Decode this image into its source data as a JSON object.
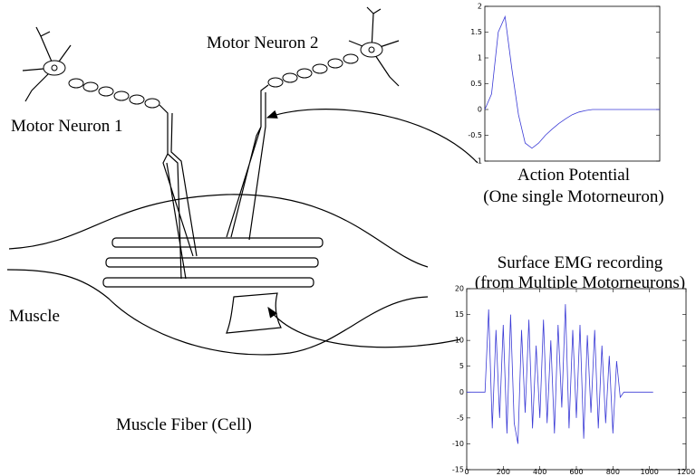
{
  "labels": {
    "neuron1": "Motor Neuron 1",
    "neuron2": "Motor Neuron 2",
    "muscle": "Muscle",
    "fiber": "Muscle Fiber (Cell)",
    "ap_title": "Action Potential",
    "ap_subtitle": "(One single Motorneuron)",
    "emg_title": "Surface EMG recording",
    "emg_subtitle": "(from Multiple Motorneurons)"
  },
  "chart_data": [
    {
      "type": "line",
      "color": "#3b3bd6",
      "x": [
        0,
        5,
        10,
        15,
        20,
        25,
        30,
        35,
        40,
        45,
        50,
        55,
        60,
        65,
        70,
        75,
        80,
        85,
        90,
        95,
        100,
        105,
        110,
        115,
        120,
        125,
        130
      ],
      "values": [
        0,
        0.3,
        1.5,
        1.8,
        0.8,
        -0.1,
        -0.65,
        -0.75,
        -0.65,
        -0.5,
        -0.38,
        -0.27,
        -0.18,
        -0.1,
        -0.05,
        -0.02,
        0,
        0,
        0,
        0,
        0,
        0,
        0,
        0,
        0,
        0,
        0
      ],
      "xlim": [
        0,
        130
      ],
      "ylim": [
        -1,
        2
      ],
      "yticks": [
        -1,
        -0.5,
        0,
        0.5,
        1,
        1.5,
        2
      ]
    },
    {
      "type": "line",
      "color": "#3b3bd6",
      "x": [
        0,
        20,
        40,
        60,
        80,
        100,
        120,
        140,
        160,
        180,
        200,
        220,
        240,
        260,
        280,
        300,
        320,
        340,
        360,
        380,
        400,
        420,
        440,
        460,
        480,
        500,
        520,
        540,
        560,
        580,
        600,
        620,
        640,
        660,
        680,
        700,
        720,
        740,
        760,
        780,
        800,
        820,
        840,
        860,
        880,
        900,
        920,
        940,
        960,
        980,
        1000,
        1020
      ],
      "values": [
        0,
        0,
        0,
        0,
        0,
        0,
        16,
        -7,
        12,
        -5,
        13,
        -8,
        15,
        -6,
        -10,
        12,
        -4,
        14,
        -7,
        9,
        -5,
        14,
        -6,
        10,
        -8,
        13,
        -3,
        17,
        -7,
        12,
        -5,
        13,
        -9,
        11,
        -4,
        12,
        -7,
        9,
        -6,
        7,
        -8,
        6,
        -1,
        0,
        0,
        0,
        0,
        0,
        0,
        0,
        0,
        0
      ],
      "xlim": [
        0,
        1200
      ],
      "xticks": [
        0,
        200,
        400,
        600,
        800,
        1000,
        1200
      ],
      "ylim": [
        -15,
        20
      ],
      "yticks": [
        -15,
        -10,
        -5,
        0,
        5,
        10,
        15,
        20
      ]
    }
  ]
}
